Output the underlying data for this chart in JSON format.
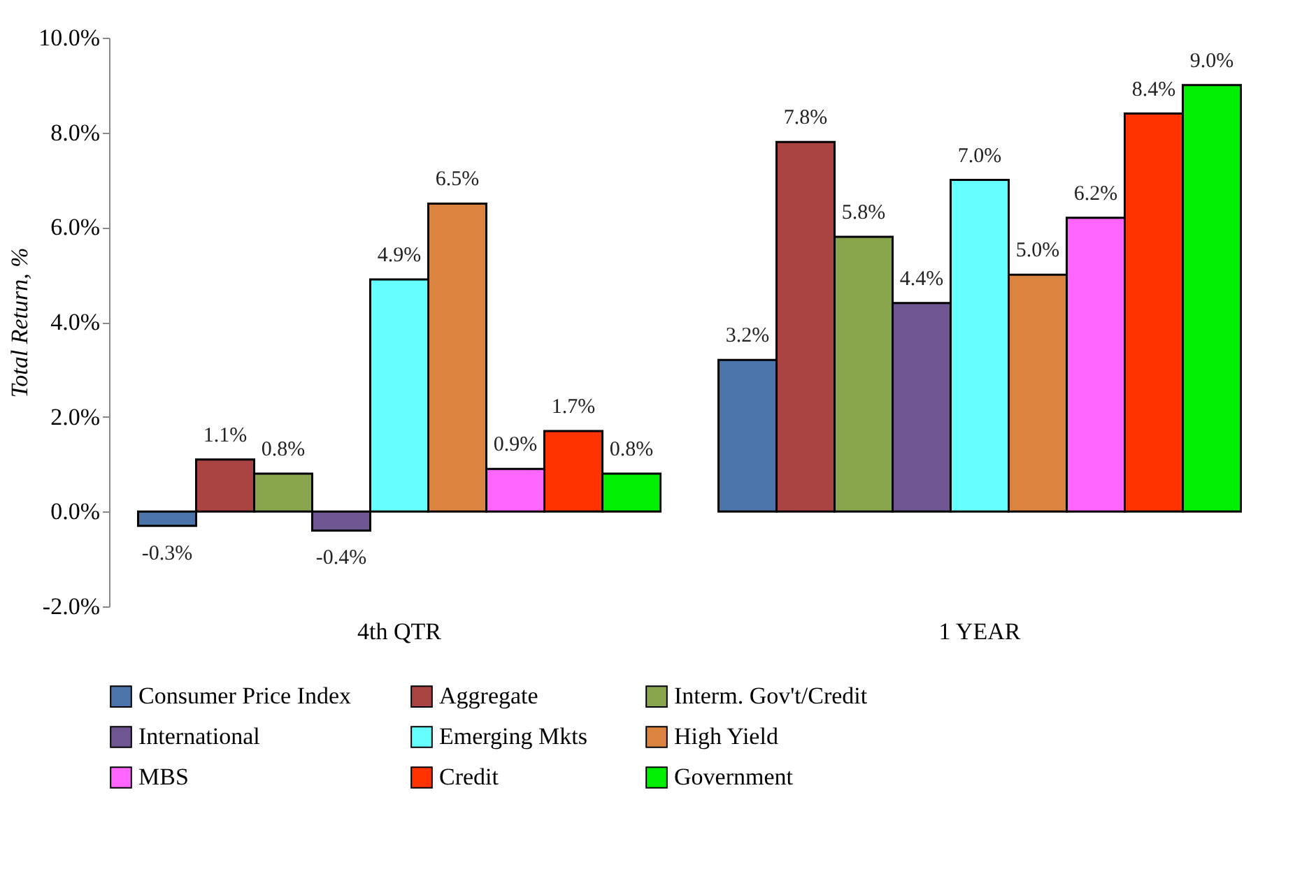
{
  "chart_data": {
    "type": "bar",
    "ylabel": "Total Return, %",
    "categories": [
      "4th QTR",
      "1 YEAR"
    ],
    "series": [
      {
        "name": "Consumer Price Index",
        "color": "#4a74aa",
        "values": [
          -0.3,
          3.2
        ],
        "value_labels": [
          "-0.3%",
          "3.2%"
        ]
      },
      {
        "name": "Aggregate",
        "color": "#a94442",
        "values": [
          1.1,
          7.8
        ],
        "value_labels": [
          "1.1%",
          "7.8%"
        ]
      },
      {
        "name": "Interm. Gov't/Credit",
        "color": "#8aa64c",
        "values": [
          0.8,
          5.8
        ],
        "value_labels": [
          "0.8%",
          "5.8%"
        ]
      },
      {
        "name": "International",
        "color": "#6f5592",
        "values": [
          -0.4,
          4.4
        ],
        "value_labels": [
          "-0.4%",
          "4.4%"
        ]
      },
      {
        "name": "Emerging Mkts",
        "color": "#66ffff",
        "values": [
          4.9,
          7.0
        ],
        "value_labels": [
          "4.9%",
          "7.0%"
        ]
      },
      {
        "name": "High Yield",
        "color": "#db8440",
        "values": [
          6.5,
          5.0
        ],
        "value_labels": [
          "6.5%",
          "5.0%"
        ]
      },
      {
        "name": "MBS",
        "color": "#ff66ff",
        "values": [
          0.9,
          6.2
        ],
        "value_labels": [
          "0.9%",
          "6.2%"
        ]
      },
      {
        "name": "Credit",
        "color": "#ff3300",
        "values": [
          1.7,
          8.4
        ],
        "value_labels": [
          "1.7%",
          "8.4%"
        ]
      },
      {
        "name": "Government",
        "color": "#00ee00",
        "values": [
          0.8,
          9.0
        ],
        "value_labels": [
          "0.8%",
          "9.0%"
        ]
      }
    ],
    "ylim": [
      -2,
      10
    ],
    "yticks": [
      {
        "value": -2,
        "label": "-2.0%"
      },
      {
        "value": 0,
        "label": "0.0%"
      },
      {
        "value": 2,
        "label": "2.0%"
      },
      {
        "value": 4,
        "label": "4.0%"
      },
      {
        "value": 6,
        "label": "6.0%"
      },
      {
        "value": 8,
        "label": "8.0%"
      },
      {
        "value": 10,
        "label": "10.0%"
      }
    ],
    "grid": false,
    "legend": "bottom"
  }
}
